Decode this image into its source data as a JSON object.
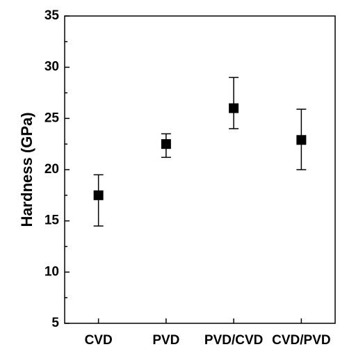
{
  "chart_data": {
    "type": "errorbar",
    "y_label": "Hardness (GPa)",
    "categories": [
      "CVD",
      "PVD",
      "PVD/CVD",
      "CVD/PVD"
    ],
    "values": [
      17.5,
      22.5,
      26,
      22.9
    ],
    "errors_plus": [
      2,
      1,
      3,
      3
    ],
    "errors_minus": [
      3,
      1.3,
      2,
      2.9
    ],
    "color": "#000000",
    "ylim": [
      5,
      35
    ],
    "yticks": [
      5,
      10,
      15,
      20,
      25,
      30,
      35
    ]
  }
}
